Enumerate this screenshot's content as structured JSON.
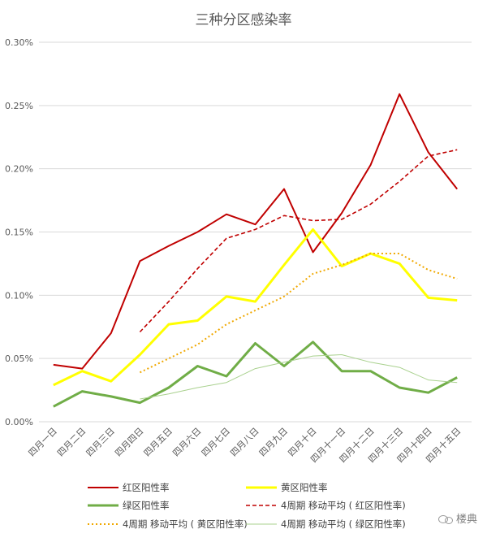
{
  "chart_data": {
    "type": "line",
    "title": "三种分区感染率",
    "categories": [
      "四月一日",
      "四月二日",
      "四月三日",
      "四月四日",
      "四月五日",
      "四月六日",
      "四月七日",
      "四月八日",
      "四月九日",
      "四月十日",
      "四月十一日",
      "四月十二日",
      "四月十三日",
      "四月十四日",
      "四月十五日"
    ],
    "yticks": [
      "0.00%",
      "0.05%",
      "0.10%",
      "0.15%",
      "0.20%",
      "0.25%",
      "0.30%"
    ],
    "ylim": [
      0,
      0.3
    ],
    "grid": true,
    "legend_position": "bottom",
    "series": [
      {
        "name": "红区阳性率",
        "color": "#c00000",
        "style": "solid",
        "width": 2,
        "values": [
          0.045,
          0.042,
          0.07,
          0.127,
          0.139,
          0.15,
          0.164,
          0.156,
          0.184,
          0.134,
          0.165,
          0.203,
          0.259,
          0.213,
          0.184
        ]
      },
      {
        "name": "黄区阳性率",
        "color": "#ffff00",
        "style": "solid",
        "width": 3,
        "values": [
          0.029,
          0.04,
          0.032,
          0.053,
          0.077,
          0.08,
          0.099,
          0.095,
          0.124,
          0.152,
          0.123,
          0.133,
          0.125,
          0.098,
          0.096
        ]
      },
      {
        "name": "绿区阳性率",
        "color": "#70ad47",
        "style": "solid",
        "width": 3,
        "values": [
          0.012,
          0.024,
          0.02,
          0.015,
          0.027,
          0.044,
          0.036,
          0.062,
          0.044,
          0.063,
          0.04,
          0.04,
          0.027,
          0.023,
          0.035
        ]
      },
      {
        "name": "4周期 移动平均 ( 红区阳性率)",
        "color": "#c00000",
        "style": "dashed",
        "width": 1.6,
        "values": [
          null,
          null,
          null,
          0.071,
          0.095,
          0.121,
          0.145,
          0.152,
          0.163,
          0.159,
          0.16,
          0.172,
          0.19,
          0.21,
          0.215
        ]
      },
      {
        "name": "4周期 移动平均 ( 黄区阳性率)",
        "color": "#f0a800",
        "style": "dotted",
        "width": 2,
        "values": [
          null,
          null,
          null,
          0.039,
          0.05,
          0.061,
          0.077,
          0.088,
          0.099,
          0.117,
          0.124,
          0.133,
          0.133,
          0.12,
          0.113
        ]
      },
      {
        "name": "4周期 移动平均 ( 绿区阳性率)",
        "color": "#a9d18e",
        "style": "solid",
        "width": 1,
        "values": [
          null,
          null,
          null,
          0.018,
          0.022,
          0.027,
          0.031,
          0.042,
          0.047,
          0.052,
          0.053,
          0.047,
          0.043,
          0.033,
          0.031
        ]
      }
    ]
  },
  "watermark": {
    "text": "楼典"
  }
}
